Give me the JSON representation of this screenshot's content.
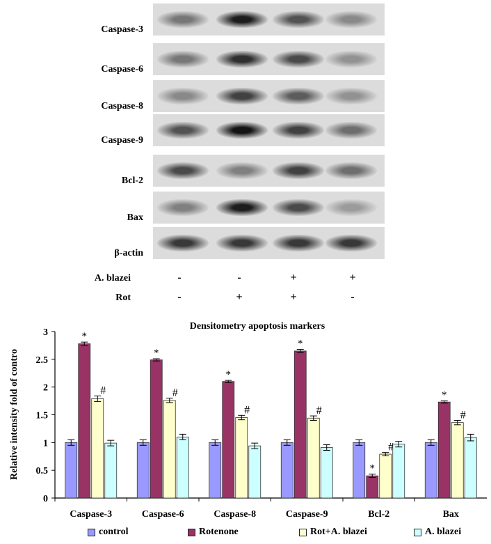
{
  "blot": {
    "rows": [
      {
        "label": "Caspase-3",
        "intensity": [
          0.45,
          0.95,
          0.65,
          0.35
        ]
      },
      {
        "label": "Caspase-6",
        "intensity": [
          0.45,
          0.85,
          0.7,
          0.3
        ]
      },
      {
        "label": "Caspase-8",
        "intensity": [
          0.35,
          0.75,
          0.6,
          0.3
        ]
      },
      {
        "label": "Caspase-9",
        "intensity": [
          0.65,
          1.0,
          0.75,
          0.5
        ]
      },
      {
        "label": "Bcl-2",
        "intensity": [
          0.7,
          0.4,
          0.75,
          0.5
        ]
      },
      {
        "label": "Bax",
        "intensity": [
          0.4,
          0.95,
          0.7,
          0.25
        ]
      },
      {
        "label": "β-actin",
        "intensity": [
          0.8,
          0.8,
          0.8,
          0.8
        ]
      }
    ],
    "treatments": [
      {
        "label": "A. blazei",
        "signs": [
          "-",
          "-",
          "+",
          "+"
        ]
      },
      {
        "label": "Rot",
        "signs": [
          "-",
          "+",
          "+",
          "-"
        ]
      }
    ]
  },
  "chart_data": {
    "type": "bar",
    "title": "Densitometry apoptosis markers",
    "ylabel": "Relative intensity fold of contro",
    "xlabel": "",
    "ylim": [
      0,
      3
    ],
    "yticks": [
      "0",
      "0.5",
      "1",
      "1.5",
      "2",
      "2.5",
      "3"
    ],
    "categories": [
      "Caspase-3",
      "Caspase-6",
      "Caspase-8",
      "Caspase-9",
      "Bcl-2",
      "Bax"
    ],
    "series": [
      {
        "name": "control",
        "color": "#9999ff",
        "values": [
          1.0,
          1.0,
          1.0,
          1.0,
          1.0,
          1.0
        ],
        "errors": [
          0.05,
          0.05,
          0.05,
          0.05,
          0.05,
          0.05
        ],
        "marks": [
          "",
          "",
          "",
          "",
          "",
          ""
        ]
      },
      {
        "name": "Rotenone",
        "color": "#993366",
        "values": [
          2.78,
          2.49,
          2.1,
          2.65,
          0.4,
          1.73
        ],
        "errors": [
          0.03,
          0.02,
          0.02,
          0.03,
          0.03,
          0.02
        ],
        "marks": [
          "*",
          "*",
          "*",
          "*",
          "*",
          "*"
        ]
      },
      {
        "name": "Rot+A. blazei",
        "color": "#ffffcc",
        "values": [
          1.79,
          1.76,
          1.45,
          1.44,
          0.79,
          1.36
        ],
        "errors": [
          0.05,
          0.04,
          0.04,
          0.04,
          0.03,
          0.04
        ],
        "marks": [
          "#",
          "#",
          "#",
          "#",
          "#",
          "#"
        ]
      },
      {
        "name": "A. blazei",
        "color": "#ccffff",
        "values": [
          0.99,
          1.1,
          0.94,
          0.91,
          0.97,
          1.09
        ],
        "errors": [
          0.05,
          0.05,
          0.05,
          0.05,
          0.05,
          0.06
        ],
        "marks": [
          "",
          "",
          "",
          "",
          "",
          ""
        ]
      }
    ],
    "grid": false,
    "legend_position": "bottom"
  }
}
